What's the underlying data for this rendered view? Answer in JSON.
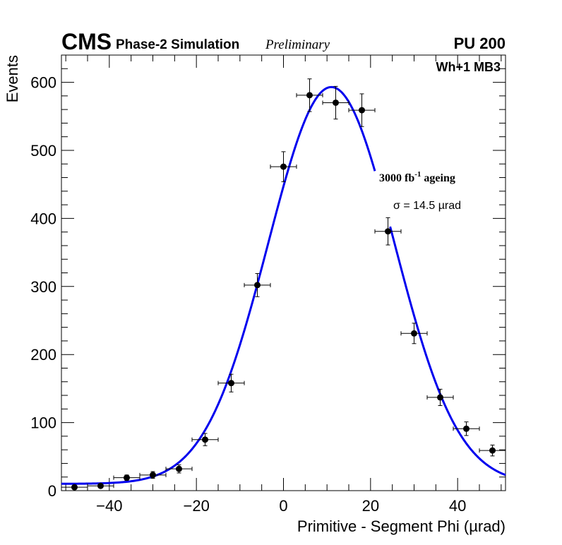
{
  "header": {
    "experiment": "CMS",
    "subtitle": "Phase-2 Simulation",
    "status": "Preliminary",
    "pileup": "PU 200"
  },
  "chart_data": {
    "type": "scatter",
    "title": "",
    "xlabel": "Primitive - Segment Phi (µrad)",
    "ylabel": "Events",
    "xlim": [
      -51,
      51
    ],
    "ylim": [
      0,
      640
    ],
    "xticks": [
      -40,
      -20,
      0,
      20,
      40
    ],
    "yticks": [
      0,
      100,
      200,
      300,
      400,
      500,
      600
    ],
    "xtick_labels": [
      "−40",
      "−20",
      "0",
      "20",
      "40"
    ],
    "ytick_labels": [
      "0",
      "100",
      "200",
      "300",
      "400",
      "500",
      "600"
    ],
    "grid": false,
    "label_region": "Wh+1 MB3",
    "annotation_ageing": {
      "base": "3000 fb",
      "sup": "-1",
      "rest": " ageing"
    },
    "annotation_sigma": "σ = 14.5 µrad",
    "bin_half_width": 3,
    "points": [
      {
        "x": -48,
        "y": 5,
        "yerr": 2
      },
      {
        "x": -42,
        "y": 7,
        "yerr": 3
      },
      {
        "x": -36,
        "y": 19,
        "yerr": 4
      },
      {
        "x": -30,
        "y": 23,
        "yerr": 5
      },
      {
        "x": -24,
        "y": 32,
        "yerr": 6
      },
      {
        "x": -18,
        "y": 75,
        "yerr": 9
      },
      {
        "x": -12,
        "y": 158,
        "yerr": 13
      },
      {
        "x": -6,
        "y": 302,
        "yerr": 17
      },
      {
        "x": 0,
        "y": 476,
        "yerr": 22
      },
      {
        "x": 6,
        "y": 581,
        "yerr": 24
      },
      {
        "x": 12,
        "y": 570,
        "yerr": 24
      },
      {
        "x": 18,
        "y": 559,
        "yerr": 24
      },
      {
        "x": 24,
        "y": 381,
        "yerr": 20
      },
      {
        "x": 30,
        "y": 231,
        "yerr": 15
      },
      {
        "x": 36,
        "y": 137,
        "yerr": 12
      },
      {
        "x": 42,
        "y": 91,
        "yerr": 10
      },
      {
        "x": 48,
        "y": 59,
        "yerr": 8
      }
    ],
    "fit": {
      "function": "gaussian",
      "color": "#0000ee",
      "amplitude": 583,
      "mean": 11,
      "sigma": 14.5,
      "baseline": 10,
      "segments": [
        [
          -51,
          21
        ],
        [
          24.5,
          51
        ]
      ]
    }
  }
}
